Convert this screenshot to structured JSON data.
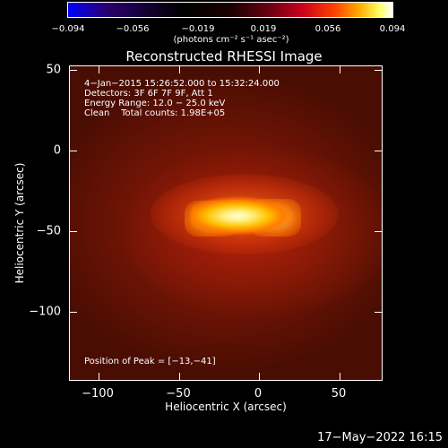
{
  "colorbar": {
    "ticks": [
      "−0.094",
      "−0.056",
      "−0.019",
      "0.019",
      "0.056",
      "0.094"
    ],
    "units": "(photons cm⁻² s⁻¹ asec⁻²)"
  },
  "title": "Reconstructed RHESSI Image",
  "info": {
    "line1": "4−Jan−2015 15:26:52.000 to 15:32:24.000",
    "line2": "Detectors: 3F 6F 7F 9F, Att 1",
    "line3": "Energy Range: 12.0 − 25.0 keV",
    "line4": "Clean    Total counts: 1.98E+05"
  },
  "peak": "Position of Peak = [−13,−41]",
  "axes": {
    "x_ticks": [
      "−100",
      "−50",
      "0",
      "50"
    ],
    "y_ticks": [
      "50",
      "0",
      "−50",
      "−100"
    ],
    "xlabel": "Heliocentric X (arcsec)",
    "ylabel": "Heliocentric Y (arcsec)"
  },
  "timestamp": "17−May−2022 16:15",
  "colors": {
    "background": "#000000",
    "text": "#ffffff",
    "image_base": "#6e1405",
    "source_core": "#ffffd8"
  }
}
